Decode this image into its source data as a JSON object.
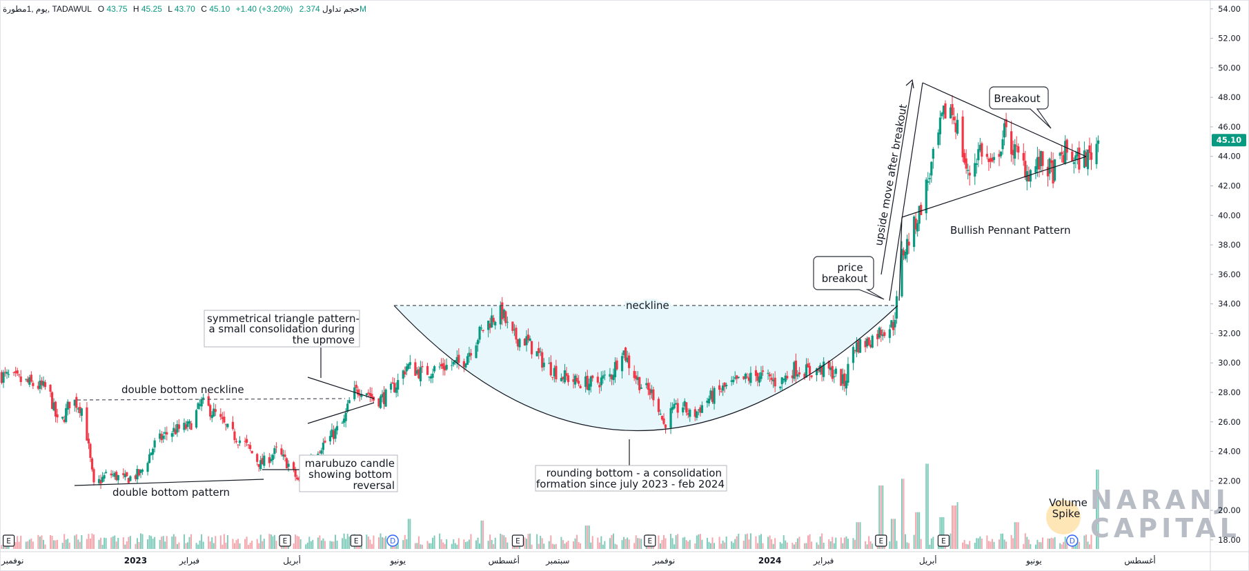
{
  "header": {
    "symbol_info": "يوم ,1مطورة, TADAWUL",
    "o_label": "O",
    "o_value": "43.75",
    "h_label": "H",
    "h_value": "45.25",
    "l_label": "L",
    "l_value": "43.70",
    "c_label": "C",
    "c_value": "45.10",
    "change": "+1.40 (+3.20%)",
    "volume_label": "حجم تداول",
    "volume_value": "2.374M",
    "up_color": "#089981"
  },
  "price_tag": "45.10",
  "watermark": {
    "line1": "NARANJ",
    "line2": "CAPITAL"
  },
  "annotations": {
    "double_bottom_neckline": "double bottom neckline",
    "double_bottom_pattern": "double bottom pattern",
    "sym_triangle": [
      "symmetrical triangle pattern-",
      "a small consolidation during",
      "the upmove"
    ],
    "marubuzo": [
      "marubuzo candle",
      "showing bottom",
      "reversal"
    ],
    "neckline": "neckline",
    "rounding_bottom": [
      "rounding bottom - a consolidation",
      "formation since july 2023 - feb 2024"
    ],
    "price_breakout": [
      "price",
      "breakout"
    ],
    "upside_move": "upside move after breakout",
    "breakout": "Breakout",
    "bullish_pennant": "Bullish Pennant Pattern",
    "volume_spike": [
      "Volume",
      "Spike"
    ]
  },
  "event_markers": {
    "earnings_label": "E",
    "dividend_label": "D",
    "earnings_dates": [
      "2022-10-20",
      "2023-03-28",
      "2023-05-08",
      "2023-08-09",
      "2023-10-24",
      "2024-03-05",
      "2024-04-10"
    ],
    "dividend_dates": [
      "2023-05-29",
      "2024-06-23"
    ]
  },
  "chart_data": {
    "type": "candlestick",
    "x_type": "date",
    "xlim": [
      "2022-10-15",
      "2024-08-28"
    ],
    "ylim": [
      17.2,
      54.6
    ],
    "yaxis_ticks": [
      "18.00",
      "20.00",
      "22.00",
      "24.00",
      "26.00",
      "28.00",
      "30.00",
      "32.00",
      "34.00",
      "36.00",
      "38.00",
      "40.00",
      "42.00",
      "44.00",
      "46.00",
      "48.00",
      "50.00",
      "52.00",
      "54.00"
    ],
    "xaxis_ticks": [
      {
        "date": "2022-10-15",
        "label": "نوفمبر"
      },
      {
        "date": "2023-01-01",
        "label": "2023"
      },
      {
        "date": "2023-02-01",
        "label": "فبراير"
      },
      {
        "date": "2023-04-01",
        "label": "أبريل"
      },
      {
        "date": "2023-06-01",
        "label": "يونيو"
      },
      {
        "date": "2023-08-01",
        "label": "أغسطس"
      },
      {
        "date": "2023-09-01",
        "label": "سبتمبر"
      },
      {
        "date": "2023-11-01",
        "label": "نوفمبر"
      },
      {
        "date": "2024-01-01",
        "label": "2024"
      },
      {
        "date": "2024-02-01",
        "label": "فبراير"
      },
      {
        "date": "2024-04-01",
        "label": "أبريل"
      },
      {
        "date": "2024-06-01",
        "label": "يونيو"
      },
      {
        "date": "2024-08-01",
        "label": "أغسطس"
      }
    ],
    "up_color": "#089981",
    "down_color": "#f23645",
    "price_path": [
      [
        "2022-10-15",
        29.2
      ],
      [
        "2022-11-01",
        28.6
      ],
      [
        "2022-11-12",
        28.2
      ],
      [
        "2022-11-18",
        25.5
      ],
      [
        "2022-11-25",
        27.6
      ],
      [
        "2022-12-02",
        26.8
      ],
      [
        "2022-12-08",
        21.6
      ],
      [
        "2022-12-16",
        22.5
      ],
      [
        "2022-12-26",
        22.1
      ],
      [
        "2023-01-04",
        22.5
      ],
      [
        "2023-01-12",
        24.5
      ],
      [
        "2023-01-20",
        25.3
      ],
      [
        "2023-02-01",
        25.7
      ],
      [
        "2023-02-08",
        27.3
      ],
      [
        "2023-02-16",
        26.5
      ],
      [
        "2023-02-24",
        25.3
      ],
      [
        "2023-03-05",
        24.5
      ],
      [
        "2023-03-14",
        23.1
      ],
      [
        "2023-03-23",
        24.0
      ],
      [
        "2023-03-30",
        23.1
      ],
      [
        "2023-04-05",
        21.9
      ],
      [
        "2023-04-12",
        23.8
      ],
      [
        "2023-04-22",
        24.8
      ],
      [
        "2023-05-01",
        26.0
      ],
      [
        "2023-05-05",
        27.8
      ],
      [
        "2023-05-12",
        28.4
      ],
      [
        "2023-05-19",
        27.4
      ],
      [
        "2023-05-26",
        27.8
      ],
      [
        "2023-06-01",
        28.7
      ],
      [
        "2023-06-06",
        29.8
      ],
      [
        "2023-06-15",
        29.3
      ],
      [
        "2023-06-25",
        29.7
      ],
      [
        "2023-07-08",
        30.0
      ],
      [
        "2023-07-18",
        32.0
      ],
      [
        "2023-07-25",
        33.0
      ],
      [
        "2023-07-31",
        33.4
      ],
      [
        "2023-08-05",
        31.8
      ],
      [
        "2023-08-14",
        31.5
      ],
      [
        "2023-08-24",
        30.0
      ],
      [
        "2023-09-02",
        29.2
      ],
      [
        "2023-09-12",
        28.7
      ],
      [
        "2023-09-22",
        28.6
      ],
      [
        "2023-10-02",
        29.2
      ],
      [
        "2023-10-08",
        31.0
      ],
      [
        "2023-10-14",
        29.4
      ],
      [
        "2023-10-20",
        28.3
      ],
      [
        "2023-10-27",
        27.8
      ],
      [
        "2023-11-01",
        25.8
      ],
      [
        "2023-11-05",
        26.6
      ],
      [
        "2023-11-12",
        27.1
      ],
      [
        "2023-11-17",
        26.3
      ],
      [
        "2023-11-26",
        27.5
      ],
      [
        "2023-12-06",
        28.3
      ],
      [
        "2023-12-16",
        28.8
      ],
      [
        "2023-12-26",
        29.2
      ],
      [
        "2024-01-06",
        28.6
      ],
      [
        "2024-01-15",
        29.6
      ],
      [
        "2024-01-24",
        29.4
      ],
      [
        "2024-02-02",
        29.6
      ],
      [
        "2024-02-08",
        29.2
      ],
      [
        "2024-02-13",
        28.6
      ],
      [
        "2024-02-18",
        31.1
      ],
      [
        "2024-02-26",
        31.4
      ],
      [
        "2024-03-05",
        32.2
      ],
      [
        "2024-03-12",
        32.6
      ],
      [
        "2024-03-14",
        34.1
      ],
      [
        "2024-03-17",
        37.3
      ],
      [
        "2024-03-22",
        38.6
      ],
      [
        "2024-03-27",
        40.2
      ],
      [
        "2024-04-01",
        42.4
      ],
      [
        "2024-04-05",
        44.2
      ],
      [
        "2024-04-09",
        46.4
      ],
      [
        "2024-04-13",
        47.6
      ],
      [
        "2024-04-18",
        46.0
      ],
      [
        "2024-04-24",
        42.6
      ],
      [
        "2024-05-01",
        44.6
      ],
      [
        "2024-05-08",
        43.1
      ],
      [
        "2024-05-15",
        45.6
      ],
      [
        "2024-05-22",
        44.1
      ],
      [
        "2024-05-29",
        42.9
      ],
      [
        "2024-06-05",
        43.6
      ],
      [
        "2024-06-12",
        42.9
      ],
      [
        "2024-06-19",
        44.3
      ],
      [
        "2024-06-26",
        43.7
      ],
      [
        "2024-07-03",
        44.0
      ],
      [
        "2024-07-08",
        45.1
      ]
    ],
    "volume_max": 2.6,
    "volume_spikes": [
      [
        "2023-06-08",
        0.9
      ],
      [
        "2023-07-20",
        0.85
      ],
      [
        "2023-09-18",
        0.7
      ],
      [
        "2024-02-21",
        0.8
      ],
      [
        "2024-03-05",
        1.9
      ],
      [
        "2024-03-12",
        0.9
      ],
      [
        "2024-03-17",
        2.1
      ],
      [
        "2024-03-26",
        1.1
      ],
      [
        "2024-03-31",
        2.55
      ],
      [
        "2024-04-09",
        0.95
      ],
      [
        "2024-04-16",
        1.3
      ],
      [
        "2024-04-19",
        1.4
      ],
      [
        "2024-05-22",
        0.8
      ],
      [
        "2024-07-08",
        2.374
      ]
    ]
  }
}
